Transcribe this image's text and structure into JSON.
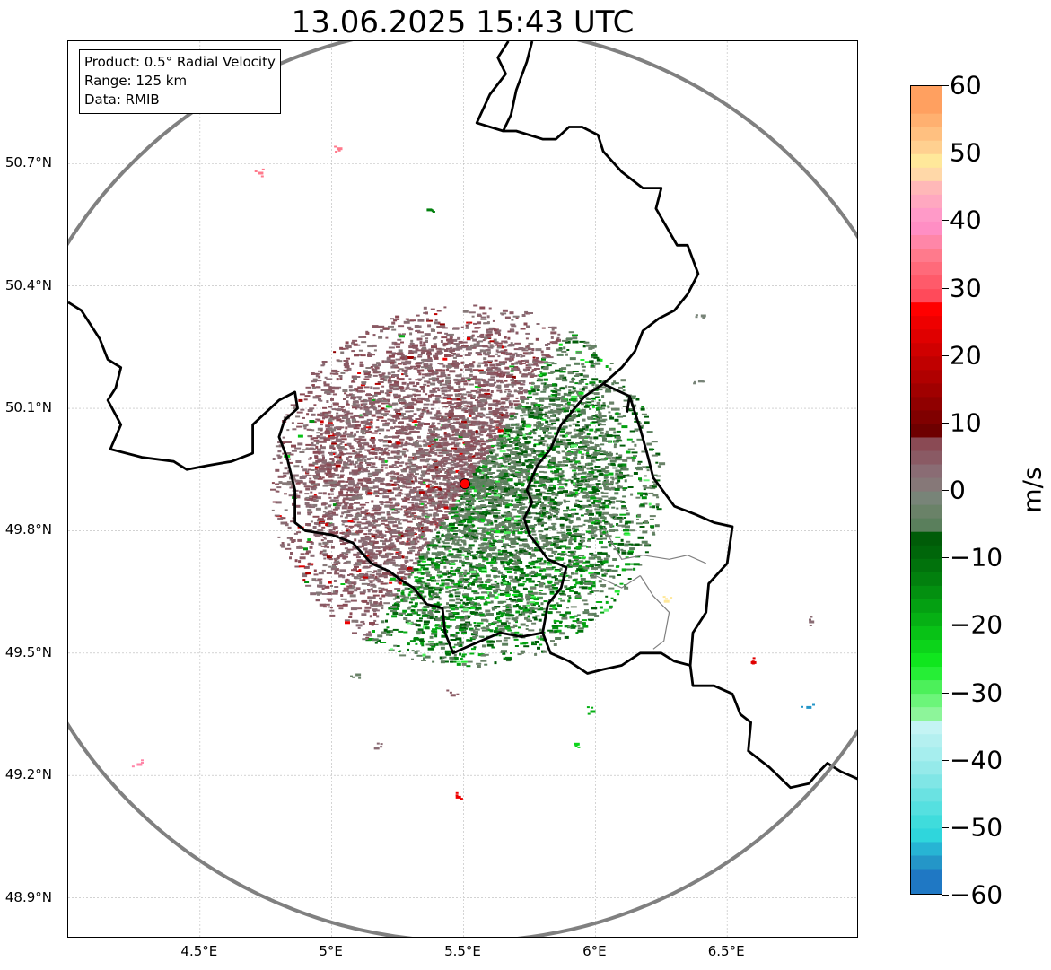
{
  "title": "13.06.2025 15:43 UTC",
  "info": {
    "product": "Product: 0.5° Radial Velocity",
    "range": "Range: 125 km",
    "data": "Data: RMIB"
  },
  "map": {
    "lon_range": [
      4.0,
      7.0
    ],
    "lat_range": [
      48.8,
      51.0
    ],
    "radar_site": {
      "lon": 5.505,
      "lat": 49.915
    },
    "range_ring_color": "#808080",
    "border_color": "#000000",
    "radar_marker_color": "#ff0000"
  },
  "axes": {
    "lat_ticks": [
      {
        "value": 50.7,
        "label": "50.7°N"
      },
      {
        "value": 50.4,
        "label": "50.4°N"
      },
      {
        "value": 50.1,
        "label": "50.1°N"
      },
      {
        "value": 49.8,
        "label": "49.8°N"
      },
      {
        "value": 49.5,
        "label": "49.5°N"
      },
      {
        "value": 49.2,
        "label": "49.2°N"
      },
      {
        "value": 48.9,
        "label": "48.9°N"
      }
    ],
    "lon_ticks": [
      {
        "value": 4.5,
        "label": "4.5°E"
      },
      {
        "value": 5.0,
        "label": "5°E"
      },
      {
        "value": 5.5,
        "label": "5.5°E"
      },
      {
        "value": 6.0,
        "label": "6°E"
      },
      {
        "value": 6.5,
        "label": "6.5°E"
      }
    ]
  },
  "colorbar": {
    "unit": "m/s",
    "min": -60,
    "max": 60,
    "ticks": [
      {
        "value": 60,
        "label": "60"
      },
      {
        "value": 50,
        "label": "50"
      },
      {
        "value": 40,
        "label": "40"
      },
      {
        "value": 30,
        "label": "30"
      },
      {
        "value": 20,
        "label": "20"
      },
      {
        "value": 10,
        "label": "10"
      },
      {
        "value": 0,
        "label": "0"
      },
      {
        "value": -10,
        "label": "−10"
      },
      {
        "value": -20,
        "label": "−20"
      },
      {
        "value": -30,
        "label": "−30"
      },
      {
        "value": -40,
        "label": "−40"
      },
      {
        "value": -50,
        "label": "−50"
      },
      {
        "value": -60,
        "label": "−60"
      }
    ],
    "color_stops": [
      {
        "from": -60,
        "to": -56,
        "color": "#1f78c4"
      },
      {
        "from": -56,
        "to": -54,
        "color": "#2496c8"
      },
      {
        "from": -54,
        "to": -52,
        "color": "#27b4d4"
      },
      {
        "from": -52,
        "to": -50,
        "color": "#2fd6dc"
      },
      {
        "from": -50,
        "to": -48,
        "color": "#3fdcdc"
      },
      {
        "from": -48,
        "to": -46,
        "color": "#55e0e0"
      },
      {
        "from": -46,
        "to": -44,
        "color": "#6ae2e2"
      },
      {
        "from": -44,
        "to": -42,
        "color": "#80e6e6"
      },
      {
        "from": -42,
        "to": -40,
        "color": "#95eaea"
      },
      {
        "from": -40,
        "to": -38,
        "color": "#a6eeee"
      },
      {
        "from": -38,
        "to": -36,
        "color": "#b4f0f0"
      },
      {
        "from": -36,
        "to": -34,
        "color": "#c4f4f4"
      },
      {
        "from": -34,
        "to": -32,
        "color": "#8df59a"
      },
      {
        "from": -32,
        "to": -30,
        "color": "#6cf57a"
      },
      {
        "from": -30,
        "to": -28,
        "color": "#4cf05a"
      },
      {
        "from": -28,
        "to": -26,
        "color": "#26ee36"
      },
      {
        "from": -26,
        "to": -24,
        "color": "#10e61e"
      },
      {
        "from": -24,
        "to": -22,
        "color": "#0cd41a"
      },
      {
        "from": -22,
        "to": -20,
        "color": "#08c216"
      },
      {
        "from": -20,
        "to": -18,
        "color": "#06b014"
      },
      {
        "from": -18,
        "to": -16,
        "color": "#04a012"
      },
      {
        "from": -16,
        "to": -14,
        "color": "#039010"
      },
      {
        "from": -14,
        "to": -12,
        "color": "#02800e"
      },
      {
        "from": -12,
        "to": -10,
        "color": "#01720c"
      },
      {
        "from": -10,
        "to": -8,
        "color": "#00660a"
      },
      {
        "from": -8,
        "to": -6,
        "color": "#005c08"
      },
      {
        "from": -6,
        "to": -4,
        "color": "#5a7f5c"
      },
      {
        "from": -4,
        "to": -2,
        "color": "#6a8268"
      },
      {
        "from": -2,
        "to": 0,
        "color": "#788478"
      },
      {
        "from": 0,
        "to": 2,
        "color": "#867878"
      },
      {
        "from": 2,
        "to": 4,
        "color": "#8a6c74"
      },
      {
        "from": 4,
        "to": 6,
        "color": "#8a5a64"
      },
      {
        "from": 6,
        "to": 8,
        "color": "#8a4a54"
      },
      {
        "from": 8,
        "to": 10,
        "color": "#6e0000"
      },
      {
        "from": 10,
        "to": 12,
        "color": "#800000"
      },
      {
        "from": 12,
        "to": 14,
        "color": "#900000"
      },
      {
        "from": 14,
        "to": 16,
        "color": "#a00000"
      },
      {
        "from": 16,
        "to": 18,
        "color": "#b00000"
      },
      {
        "from": 18,
        "to": 20,
        "color": "#c00000"
      },
      {
        "from": 20,
        "to": 22,
        "color": "#d00000"
      },
      {
        "from": 22,
        "to": 24,
        "color": "#e00000"
      },
      {
        "from": 24,
        "to": 26,
        "color": "#ee0000"
      },
      {
        "from": 26,
        "to": 28,
        "color": "#ff0000"
      },
      {
        "from": 28,
        "to": 30,
        "color": "#ff4a5a"
      },
      {
        "from": 30,
        "to": 32,
        "color": "#ff5a6a"
      },
      {
        "from": 32,
        "to": 34,
        "color": "#ff6a7a"
      },
      {
        "from": 34,
        "to": 36,
        "color": "#ff7a8c"
      },
      {
        "from": 36,
        "to": 38,
        "color": "#ff86a8"
      },
      {
        "from": 38,
        "to": 40,
        "color": "#ff8ec4"
      },
      {
        "from": 40,
        "to": 42,
        "color": "#ff9ac8"
      },
      {
        "from": 42,
        "to": 44,
        "color": "#ffa8c0"
      },
      {
        "from": 44,
        "to": 46,
        "color": "#ffb8b8"
      },
      {
        "from": 46,
        "to": 48,
        "color": "#ffd8a8"
      },
      {
        "from": 48,
        "to": 50,
        "color": "#ffe89a"
      },
      {
        "from": 50,
        "to": 52,
        "color": "#ffd090"
      },
      {
        "from": 52,
        "to": 54,
        "color": "#ffc080"
      },
      {
        "from": 54,
        "to": 56,
        "color": "#ffb070"
      },
      {
        "from": 56,
        "to": 60,
        "color": "#ffa060"
      }
    ]
  }
}
